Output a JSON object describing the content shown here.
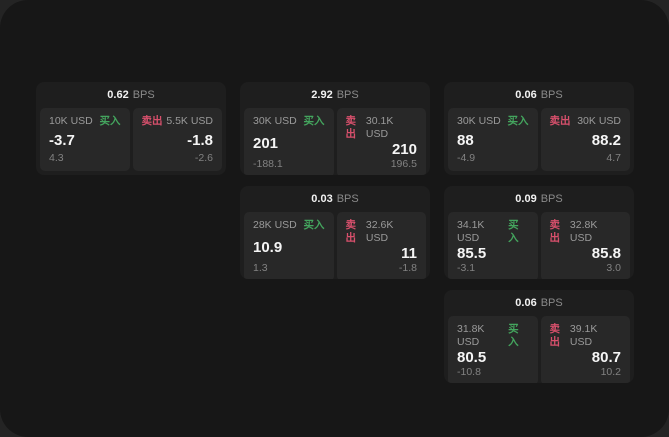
{
  "labels": {
    "buy": "买入",
    "sell": "卖出",
    "bps_unit": "BPS"
  },
  "colors": {
    "buy_green": "#44a55e",
    "sell_red": "#d8506c",
    "panel_bg": "#171717",
    "card_bg": "#1e1e1e",
    "tile_bg": "#282828"
  },
  "cards": [
    {
      "bps": "0.62",
      "buy": {
        "amount": "10K USD",
        "value": "-3.7",
        "sub": "4.3"
      },
      "sell": {
        "amount": "5.5K USD",
        "value": "-1.8",
        "sub": "-2.6"
      }
    },
    {
      "bps": "2.92",
      "buy": {
        "amount": "30K USD",
        "value": "201",
        "sub": "-188.1"
      },
      "sell": {
        "amount": "30.1K USD",
        "value": "210",
        "sub": "196.5"
      }
    },
    {
      "bps": "0.06",
      "buy": {
        "amount": "30K USD",
        "value": "88",
        "sub": "-4.9"
      },
      "sell": {
        "amount": "30K USD",
        "value": "88.2",
        "sub": "4.7"
      }
    },
    {
      "bps": "0.03",
      "buy": {
        "amount": "28K USD",
        "value": "10.9",
        "sub": "1.3"
      },
      "sell": {
        "amount": "32.6K USD",
        "value": "11",
        "sub": "-1.8"
      }
    },
    {
      "bps": "0.09",
      "buy": {
        "amount": "34.1K USD",
        "value": "85.5",
        "sub": "-3.1"
      },
      "sell": {
        "amount": "32.8K USD",
        "value": "85.8",
        "sub": "3.0"
      }
    },
    {
      "bps": "0.06",
      "buy": {
        "amount": "31.8K USD",
        "value": "80.5",
        "sub": "-10.8"
      },
      "sell": {
        "amount": "39.1K USD",
        "value": "80.7",
        "sub": "10.2"
      }
    }
  ]
}
